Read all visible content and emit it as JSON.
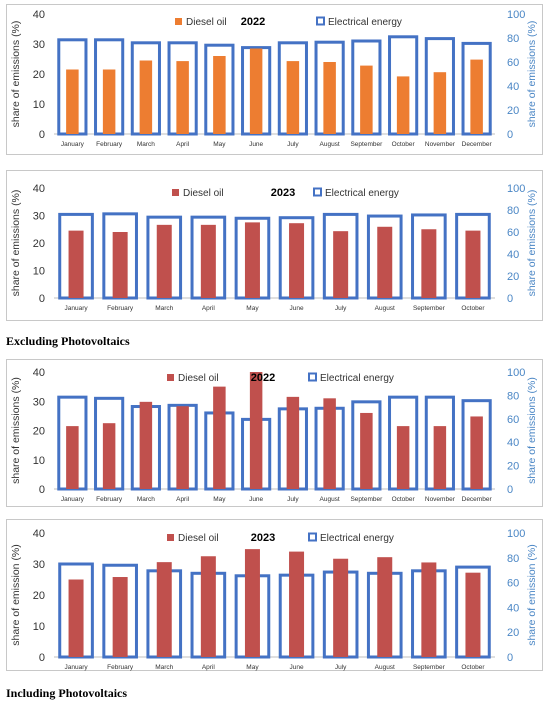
{
  "captions": {
    "excluding": "Excluding Photovoltaics",
    "including": "Including Photovoltaics"
  },
  "chart_data": [
    {
      "type": "bar",
      "title": "2022",
      "ylabel_left": "share of emissions (%)",
      "ylabel_right": "share of emissions (%)",
      "ylim_left": [
        0,
        40
      ],
      "yticks_left": [
        0,
        10,
        20,
        30,
        40
      ],
      "ylim_right": [
        0,
        100
      ],
      "yticks_right": [
        0,
        20,
        40,
        60,
        80,
        100
      ],
      "legend_placement": "top-center",
      "diesel_color": "#ED7D31",
      "categories": [
        "January",
        "February",
        "March",
        "April",
        "May",
        "June",
        "July",
        "August",
        "September",
        "October",
        "November",
        "December"
      ],
      "series": [
        {
          "name": "Diesel oil",
          "axis": "left",
          "values": [
            21.5,
            21.5,
            24.5,
            24.3,
            26,
            28.5,
            24.3,
            24,
            22.8,
            19.2,
            20.6,
            24.8
          ]
        },
        {
          "name": "Electrical energy",
          "axis": "right",
          "values": [
            78.5,
            78.5,
            76,
            76,
            74,
            72,
            76,
            76.5,
            77.5,
            81,
            79.5,
            75.5
          ]
        }
      ]
    },
    {
      "type": "bar",
      "title": "2023",
      "ylabel_left": "share of emissions (%)",
      "ylabel_right": "share of emissions (%)",
      "ylim_left": [
        0,
        40
      ],
      "yticks_left": [
        0,
        10,
        20,
        30,
        40
      ],
      "ylim_right": [
        0,
        100
      ],
      "yticks_right": [
        0,
        20,
        40,
        60,
        80,
        100
      ],
      "legend_placement": "top-center",
      "diesel_color": "#C0504D",
      "categories": [
        "January",
        "February",
        "March",
        "April",
        "May",
        "June",
        "July",
        "August",
        "September",
        "October"
      ],
      "series": [
        {
          "name": "Diesel oil",
          "axis": "left",
          "values": [
            24.5,
            24,
            26.6,
            26.6,
            27.5,
            27.2,
            24.3,
            25.9,
            25,
            24.5
          ]
        },
        {
          "name": "Electrical energy",
          "axis": "right",
          "values": [
            76,
            76.5,
            73.5,
            73.5,
            72.5,
            73,
            76,
            74.5,
            75.5,
            76
          ]
        }
      ]
    },
    {
      "type": "bar",
      "title": "2022",
      "ylabel_left": "share of emissions (%)",
      "ylabel_right": "share of emissions (%)",
      "ylim_left": [
        0,
        40
      ],
      "yticks_left": [
        0,
        10,
        20,
        30,
        40
      ],
      "ylim_right": [
        0,
        100
      ],
      "yticks_right": [
        0,
        20,
        40,
        60,
        80,
        100
      ],
      "legend_placement": "top-center",
      "diesel_color": "#C0504D",
      "categories": [
        "January",
        "February",
        "March",
        "April",
        "May",
        "June",
        "July",
        "August",
        "September",
        "October",
        "November",
        "December"
      ],
      "series": [
        {
          "name": "Diesel oil",
          "axis": "left",
          "values": [
            21.5,
            22.5,
            29.8,
            28.3,
            35,
            40,
            31.5,
            31,
            26,
            21.5,
            21.5,
            24.8
          ]
        },
        {
          "name": "Electrical energy",
          "axis": "right",
          "values": [
            78.5,
            77.5,
            70.5,
            71.5,
            65,
            59.5,
            68.5,
            69,
            74.5,
            78.5,
            78.5,
            75.5
          ]
        }
      ]
    },
    {
      "type": "bar",
      "title": "2023",
      "ylabel_left": "share of emission (%)",
      "ylabel_right": "share of emission (%)",
      "ylim_left": [
        0,
        40
      ],
      "yticks_left": [
        0,
        10,
        20,
        30,
        40
      ],
      "ylim_right": [
        0,
        100
      ],
      "yticks_right": [
        0,
        20,
        40,
        60,
        80,
        100
      ],
      "legend_placement": "top-center",
      "diesel_color": "#C0504D",
      "categories": [
        "January",
        "February",
        "March",
        "April",
        "May",
        "June",
        "July",
        "August",
        "September",
        "October"
      ],
      "series": [
        {
          "name": "Diesel oil",
          "axis": "left",
          "values": [
            25,
            25.8,
            30.6,
            32.5,
            34.8,
            34,
            31.7,
            32.2,
            30.5,
            27.2
          ]
        },
        {
          "name": "Electrical energy",
          "axis": "right",
          "values": [
            75,
            74,
            69.5,
            67.5,
            65.5,
            66,
            68.5,
            67.5,
            69.5,
            72.5
          ]
        }
      ]
    }
  ]
}
